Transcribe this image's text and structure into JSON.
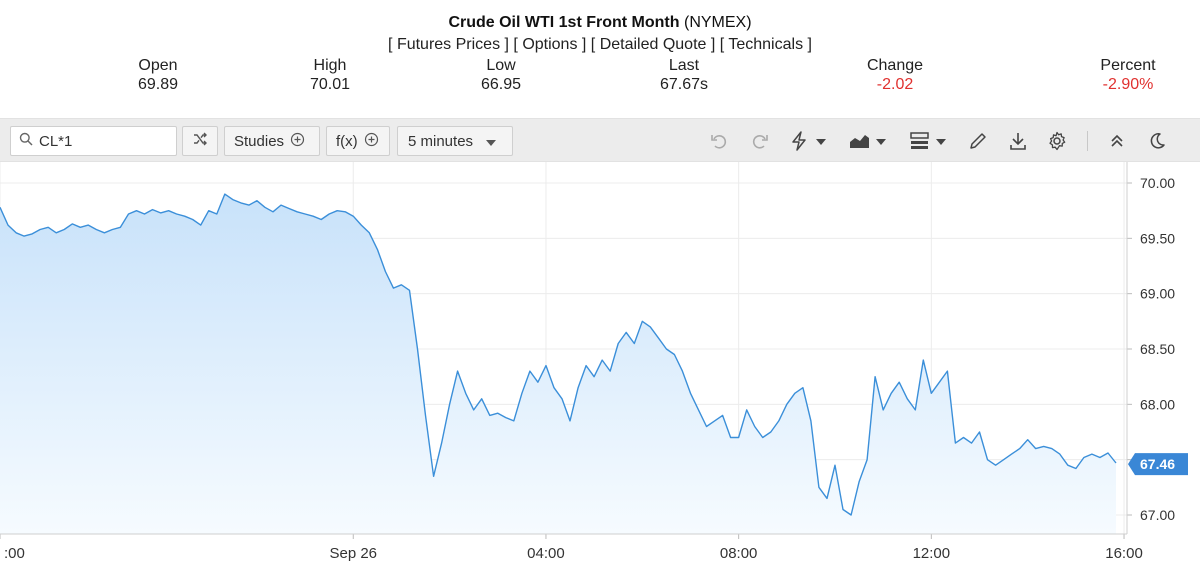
{
  "header": {
    "title": "Crude Oil WTI 1st Front Month",
    "exchange": "(NYMEX)",
    "links": [
      {
        "label": "Futures Prices"
      },
      {
        "label": "Options"
      },
      {
        "label": "Detailed Quote"
      },
      {
        "label": "Technicals"
      }
    ]
  },
  "quote": {
    "open": {
      "label": "Open",
      "value": "69.89"
    },
    "high": {
      "label": "High",
      "value": "70.01"
    },
    "low": {
      "label": "Low",
      "value": "66.95"
    },
    "last": {
      "label": "Last",
      "value": "67.67s"
    },
    "change": {
      "label": "Change",
      "value": "-2.02"
    },
    "percent": {
      "label": "Percent",
      "value": "-2.90%"
    }
  },
  "toolbar": {
    "symbol": "CL*1",
    "studies_label": "Studies",
    "fx_label": "f(x)",
    "interval_label": "5 minutes",
    "icons": [
      "search-icon",
      "shuffle-icon",
      "plus-circle-icon",
      "chevron-down-icon",
      "undo-icon",
      "redo-icon",
      "lightning-icon",
      "area-chart-icon",
      "layout-icon",
      "pencil-icon",
      "download-icon",
      "gear-icon",
      "collapse-icon",
      "moon-icon"
    ]
  },
  "colors": {
    "line": "#3b8fd9",
    "fill_top": "#c8e2fa",
    "fill_bottom": "#f6fbff",
    "negative": "#e0312f",
    "last_tag": "#3a87d6"
  },
  "chart_data": {
    "type": "area",
    "series": [
      {
        "values": [
          69.78,
          69.62,
          69.55,
          69.52,
          69.54,
          69.58,
          69.6,
          69.55,
          69.58,
          69.63,
          69.6,
          69.62,
          69.58,
          69.55,
          69.58,
          69.6,
          69.72,
          69.75,
          69.72,
          69.76,
          69.73,
          69.75,
          69.72,
          69.7,
          69.67,
          69.62,
          69.75,
          69.72,
          69.9,
          69.85,
          69.82,
          69.8,
          69.84,
          69.78,
          69.74,
          69.8,
          69.77,
          69.74,
          69.72,
          69.7,
          69.67,
          69.72,
          69.75,
          69.74,
          69.7,
          69.62,
          69.55,
          69.4,
          69.2,
          69.05,
          69.08,
          69.03,
          68.5,
          67.9,
          67.35,
          67.65,
          68.0,
          68.3,
          68.1,
          67.95,
          68.05,
          67.9,
          67.92,
          67.88,
          67.85,
          68.1,
          68.3,
          68.2,
          68.35,
          68.15,
          68.05,
          67.85,
          68.15,
          68.35,
          68.25,
          68.4,
          68.3,
          68.55,
          68.65,
          68.55,
          68.75,
          68.7,
          68.6,
          68.5,
          68.45,
          68.3,
          68.1,
          67.95,
          67.8,
          67.85,
          67.9,
          67.7,
          67.7,
          67.95,
          67.8,
          67.7,
          67.75,
          67.85,
          68.0,
          68.1,
          68.15,
          67.85,
          67.25,
          67.15,
          67.45,
          67.05,
          67.0,
          67.3,
          67.5,
          68.25,
          67.95,
          68.1,
          68.2,
          68.05,
          67.95,
          68.4,
          68.1,
          68.2,
          68.3,
          67.65,
          67.7,
          67.65,
          67.75,
          67.5,
          67.45,
          67.5,
          67.55,
          67.6,
          67.68,
          67.6,
          67.62,
          67.6,
          67.55,
          67.45,
          67.42,
          67.52,
          67.55,
          67.52,
          67.56,
          67.47
        ],
        "last": 67.46
      }
    ],
    "x_ticks": [
      {
        "label": ":00",
        "pos": 0
      },
      {
        "label": "Sep 26",
        "pos": 44
      },
      {
        "label": "04:00",
        "pos": 68
      },
      {
        "label": "08:00",
        "pos": 92
      },
      {
        "label": "12:00",
        "pos": 116
      },
      {
        "label": "16:00",
        "pos": 140
      }
    ],
    "y_ticks": [
      67.0,
      67.5,
      68.0,
      68.5,
      69.0,
      69.5,
      70.0
    ],
    "y_tick_labels": [
      "67.00",
      "67.50",
      "68.00",
      "68.50",
      "69.00",
      "69.50",
      "70.00"
    ],
    "ylim": [
      66.85,
      70.12
    ],
    "last_label": "67.46",
    "grid": true,
    "xlabel": "",
    "ylabel": ""
  }
}
